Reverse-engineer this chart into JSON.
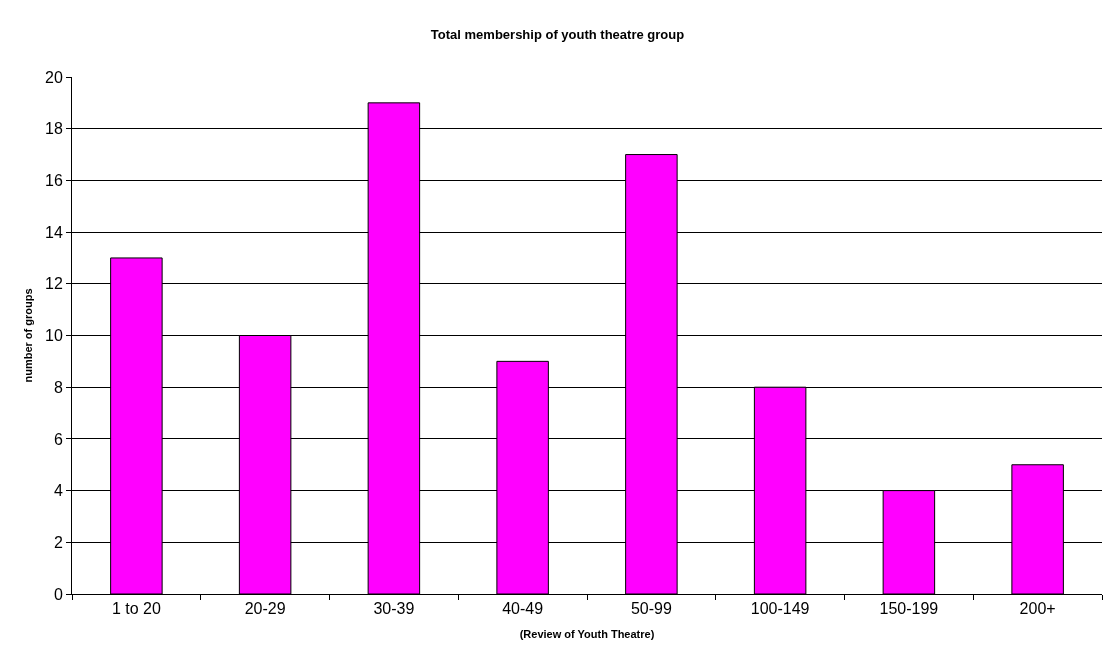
{
  "chart_data": {
    "type": "bar",
    "title": "Total membership of youth theatre group",
    "xlabel": "(Review of Youth Theatre)",
    "ylabel": "number of groups",
    "categories": [
      "1 to 20",
      "20-29",
      "30-39",
      "40-49",
      "50-99",
      "100-149",
      "150-199",
      "200+"
    ],
    "values": [
      13,
      10,
      19,
      9,
      17,
      8,
      4,
      5
    ],
    "color": "#ff00ff",
    "ylim": [
      0,
      20
    ],
    "yticks": [
      0,
      2,
      4,
      6,
      8,
      10,
      12,
      14,
      16,
      18,
      20
    ],
    "grid": "y",
    "legend": false
  }
}
